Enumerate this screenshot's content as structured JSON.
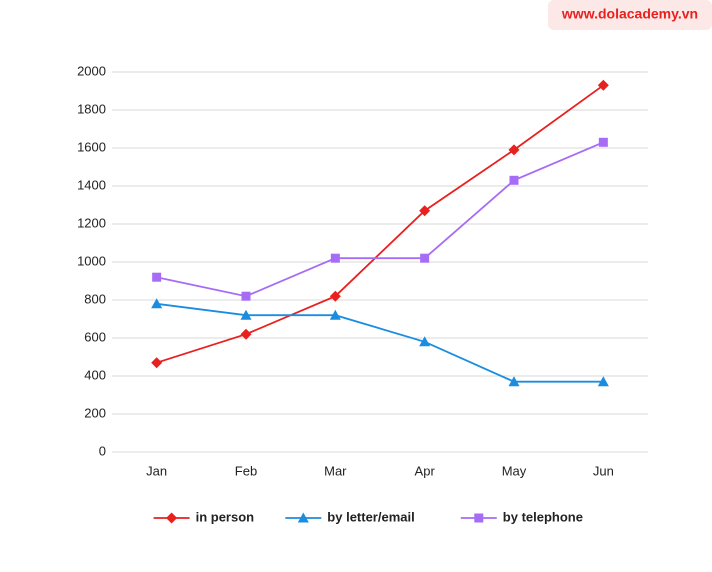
{
  "chart_data": {
    "type": "line",
    "source": "www.dolacademy.vn",
    "categories": [
      "Jan",
      "Feb",
      "Mar",
      "Apr",
      "May",
      "Jun"
    ],
    "series": [
      {
        "name": "in person",
        "color": "#e8211f",
        "marker": "diamond",
        "values": [
          470,
          620,
          820,
          1270,
          1590,
          1930
        ]
      },
      {
        "name": "by letter/email",
        "color": "#1a8de0",
        "marker": "triangle",
        "values": [
          780,
          720,
          720,
          580,
          370,
          370
        ]
      },
      {
        "name": "by telephone",
        "color": "#a66cf5",
        "marker": "square",
        "values": [
          920,
          820,
          1020,
          1020,
          1430,
          1630
        ]
      }
    ],
    "ylim": [
      0,
      2000
    ],
    "yticks": [
      0,
      200,
      400,
      600,
      800,
      1000,
      1200,
      1400,
      1600,
      1800,
      2000
    ],
    "grid": true,
    "legend": "bottom"
  }
}
